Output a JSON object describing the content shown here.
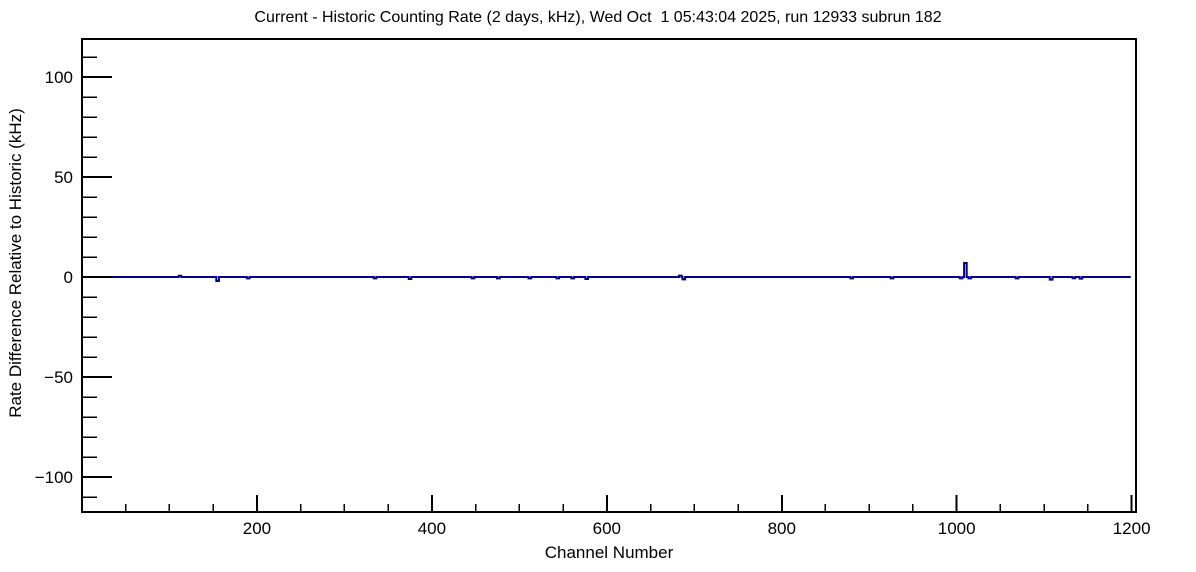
{
  "chart_data": {
    "type": "line",
    "title": "Current - Historic Counting Rate (2 days, kHz), Wed Oct  1 05:43:04 2025, run 12933 subrun 182",
    "xlabel": "Channel Number",
    "ylabel": "Rate Difference Relative to Historic (kHz)",
    "xlim": [
      0,
      1205
    ],
    "ylim": [
      -117.5,
      119
    ],
    "x_major_ticks": [
      200,
      400,
      600,
      800,
      1000,
      1200
    ],
    "x_minor_step": 50,
    "y_major_ticks": [
      -100,
      -50,
      0,
      50,
      100
    ],
    "y_minor_step": 10,
    "grid": false,
    "legend": "none",
    "line_color": "#00008b",
    "zero_line_color": "#000000",
    "frame_color": "#000000",
    "zero_line": {
      "x_start": 0,
      "x_end": 35
    },
    "series": [
      {
        "name": "rate-difference",
        "baseline": 0,
        "x_start": 35,
        "x_end": 1199,
        "spike_halfwidth_channels": 1.5,
        "spikes": [
          {
            "ch": 112,
            "v": 0.6
          },
          {
            "ch": 155,
            "v": -2.0
          },
          {
            "ch": 190,
            "v": -0.7
          },
          {
            "ch": 335,
            "v": -0.7
          },
          {
            "ch": 375,
            "v": -1.0
          },
          {
            "ch": 447,
            "v": -0.7
          },
          {
            "ch": 476,
            "v": -0.7
          },
          {
            "ch": 512,
            "v": -0.7
          },
          {
            "ch": 544,
            "v": -0.7
          },
          {
            "ch": 561,
            "v": -0.7
          },
          {
            "ch": 577,
            "v": -1.0
          },
          {
            "ch": 684,
            "v": 0.7
          },
          {
            "ch": 688,
            "v": -1.2
          },
          {
            "ch": 880,
            "v": -0.7
          },
          {
            "ch": 926,
            "v": -0.7
          },
          {
            "ch": 1005,
            "v": -0.7
          },
          {
            "ch": 1010,
            "v": 7.0
          },
          {
            "ch": 1015,
            "v": -0.7
          },
          {
            "ch": 1069,
            "v": -0.7
          },
          {
            "ch": 1108,
            "v": -1.3
          },
          {
            "ch": 1134,
            "v": -0.6
          },
          {
            "ch": 1142,
            "v": -0.8
          }
        ]
      }
    ]
  }
}
